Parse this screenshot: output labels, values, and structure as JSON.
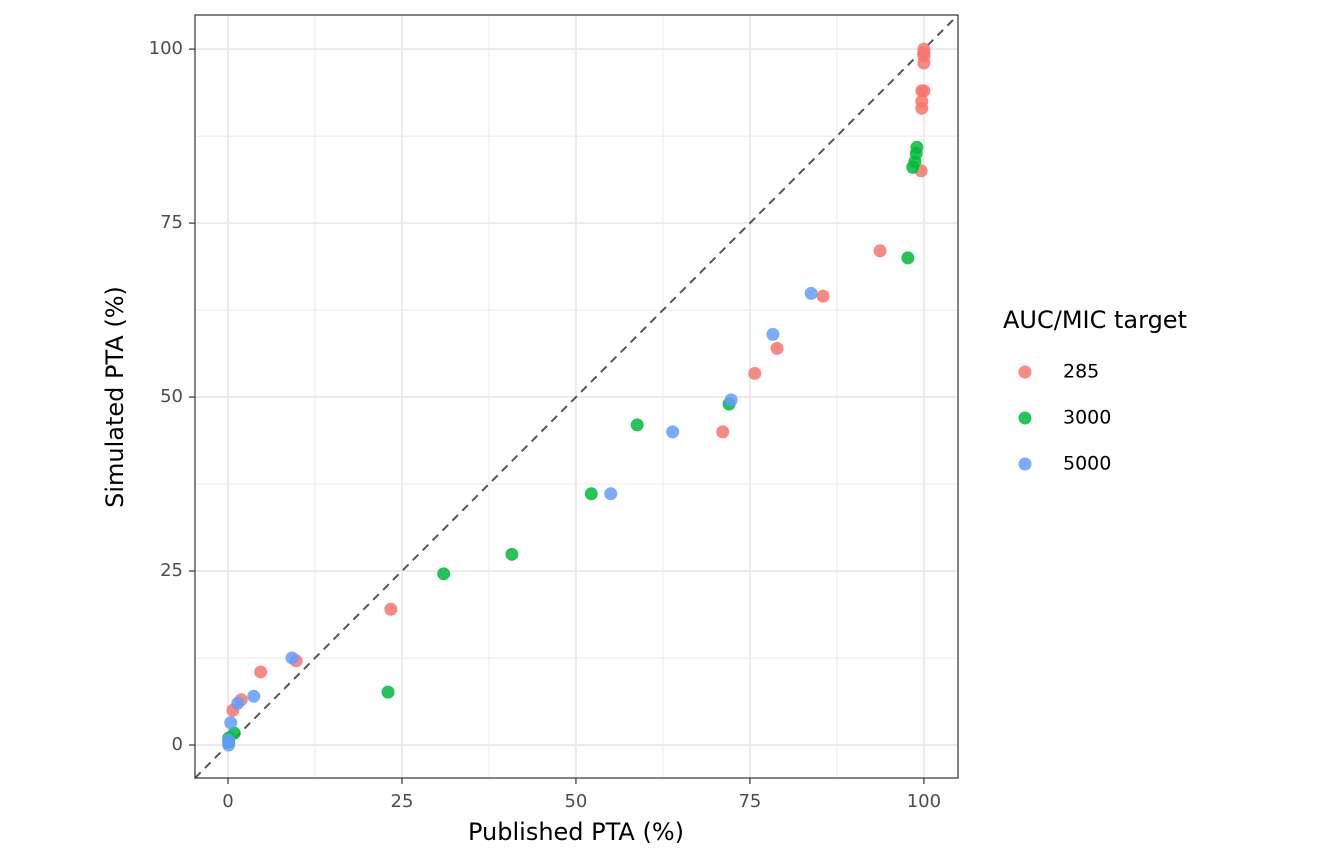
{
  "chart_data": {
    "type": "scatter",
    "x_label": "Published PTA (%)",
    "y_label": "Simulated PTA (%)",
    "legend_title": "AUC/MIC target",
    "legend_position": "right",
    "xlim": [
      -4.74,
      104.9
    ],
    "ylim": [
      -4.74,
      104.9
    ],
    "xticks": [
      0,
      25,
      50,
      75,
      100
    ],
    "yticks": [
      0,
      25,
      50,
      75,
      100
    ],
    "xminor": [
      12.5,
      37.5,
      62.5,
      87.5
    ],
    "yminor": [
      12.5,
      37.5,
      62.5,
      87.5
    ],
    "grid": true,
    "diagonal": true,
    "series": [
      {
        "name": "285",
        "color": "#F8766D",
        "x": [
          100,
          100,
          100,
          100,
          99.7,
          100,
          99.7,
          99.7,
          99.6,
          93.7,
          85.5,
          78.9,
          75.7,
          71.1,
          23.4,
          9.8,
          4.7,
          1.9,
          0.7
        ],
        "values": [
          100,
          99.5,
          99,
          98,
          94,
          94,
          92.5,
          91.5,
          82.5,
          71,
          64.5,
          57,
          53.4,
          45,
          19.5,
          12.1,
          10.5,
          6.5,
          5
        ]
      },
      {
        "name": "3000",
        "color": "#00BA38",
        "x": [
          99,
          98.9,
          98.7,
          98.4,
          97.7,
          72,
          58.8,
          52.2,
          40.8,
          31,
          23,
          0.9,
          0.1,
          0.1
        ],
        "values": [
          85.9,
          85,
          83.8,
          83,
          70,
          49,
          46,
          36.1,
          27.4,
          24.6,
          7.6,
          1.7,
          1,
          0.4
        ]
      },
      {
        "name": "5000",
        "color": "#619CFF",
        "x": [
          83.8,
          78.3,
          72.3,
          63.9,
          55,
          9.2,
          3.7,
          1.4,
          0.4,
          0.1,
          0.1
        ],
        "values": [
          64.9,
          59,
          49.6,
          45,
          36.1,
          12.5,
          7,
          6,
          3.2,
          0.7,
          0
        ]
      }
    ]
  }
}
